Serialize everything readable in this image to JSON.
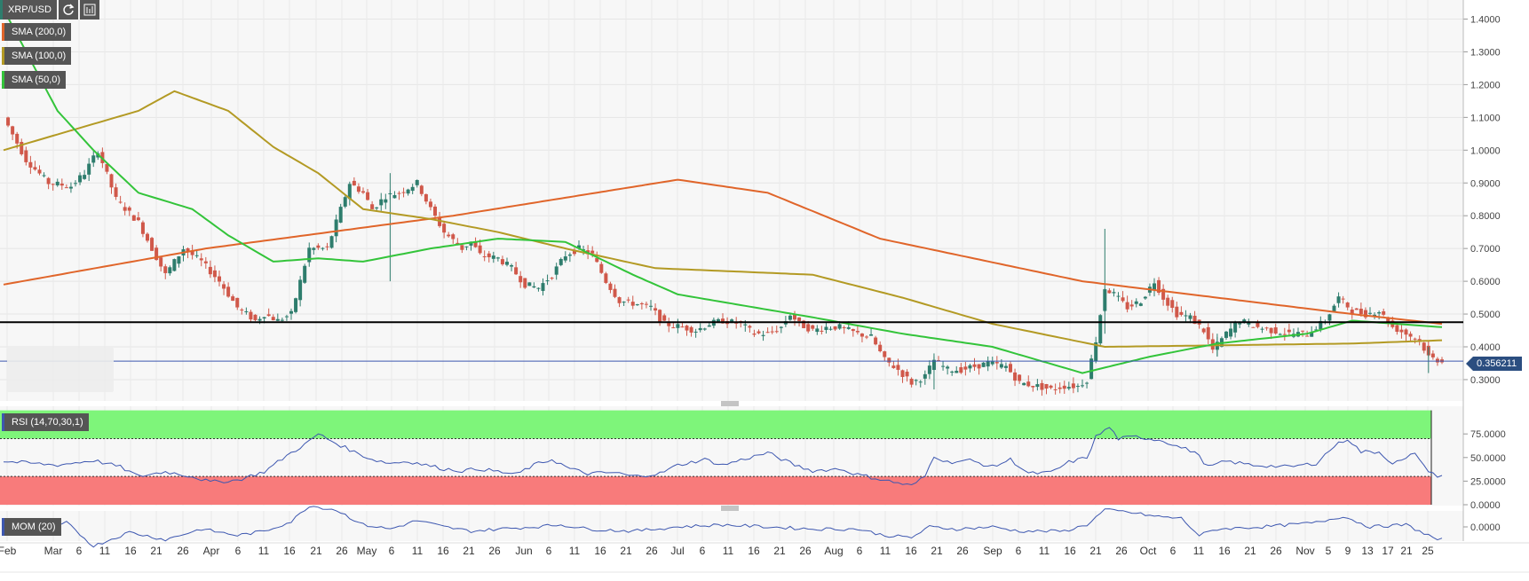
{
  "toolbar": {
    "symbol": "XRP/USD",
    "refresh_icon": "refresh-icon",
    "chart_type_icon": "candlestick-chart-icon"
  },
  "legend": [
    {
      "label": "SMA (200,0)",
      "color": "#e0652a"
    },
    {
      "label": "SMA (100,0)",
      "color": "#b39a24"
    },
    {
      "label": "SMA (50,0)",
      "color": "#33c43a"
    }
  ],
  "price_tag": {
    "value": "0.356211",
    "color": "#2b4e80"
  },
  "colors": {
    "up": "#2e7d6d",
    "down": "#d0584a",
    "rsi_overbought": "#7ef57a",
    "rsi_oversold": "#f87b7b",
    "indicator_line": "#3d57b0",
    "support": "#000000"
  },
  "chart_data": [
    {
      "type": "candlestick",
      "symbol": "XRP/USD",
      "y_ticks": [
        "1.4000",
        "1.3000",
        "1.2000",
        "1.1000",
        "1.0000",
        "0.9000",
        "0.8000",
        "0.7000",
        "0.6000",
        "0.5000",
        "0.4000",
        "0.3000"
      ],
      "ylim": [
        0.25,
        1.43
      ],
      "x_tick_labels": [
        "Feb",
        "Mar",
        "6",
        "11",
        "16",
        "21",
        "26",
        "Apr",
        "6",
        "11",
        "16",
        "21",
        "26",
        "May",
        "6",
        "11",
        "16",
        "21",
        "26",
        "Jun",
        "6",
        "11",
        "16",
        "21",
        "26",
        "Jul",
        "6",
        "11",
        "16",
        "21",
        "26",
        "Aug",
        "6",
        "11",
        "16",
        "21",
        "26",
        "Sep",
        "6",
        "11",
        "16",
        "21",
        "26",
        "Oct",
        "6",
        "11",
        "16",
        "21",
        "26",
        "Nov",
        "5",
        "9",
        "13",
        "17",
        "21",
        "25"
      ],
      "horizontal_support": 0.475,
      "last_price": 0.356211,
      "price_anchors": [
        [
          0,
          1.1
        ],
        [
          5,
          0.97
        ],
        [
          10,
          0.9
        ],
        [
          15,
          0.89
        ],
        [
          18,
          0.93
        ],
        [
          21,
          1.0
        ],
        [
          25,
          0.85
        ],
        [
          30,
          0.78
        ],
        [
          33,
          0.7
        ],
        [
          36,
          0.62
        ],
        [
          40,
          0.7
        ],
        [
          44,
          0.66
        ],
        [
          48,
          0.6
        ],
        [
          52,
          0.52
        ],
        [
          56,
          0.48
        ],
        [
          58,
          0.5
        ],
        [
          61,
          0.48
        ],
        [
          64,
          0.5
        ],
        [
          66,
          0.6
        ],
        [
          68,
          0.7
        ],
        [
          72,
          0.7
        ],
        [
          75,
          0.82
        ],
        [
          77,
          0.9
        ],
        [
          80,
          0.87
        ],
        [
          82,
          0.82
        ],
        [
          85,
          0.86
        ],
        [
          88,
          0.87
        ],
        [
          92,
          0.9
        ],
        [
          95,
          0.82
        ],
        [
          98,
          0.75
        ],
        [
          102,
          0.7
        ],
        [
          104,
          0.72
        ],
        [
          106,
          0.68
        ],
        [
          110,
          0.67
        ],
        [
          113,
          0.64
        ],
        [
          116,
          0.59
        ],
        [
          119,
          0.58
        ],
        [
          122,
          0.62
        ],
        [
          125,
          0.68
        ],
        [
          128,
          0.7
        ],
        [
          131,
          0.68
        ],
        [
          134,
          0.6
        ],
        [
          137,
          0.54
        ],
        [
          141,
          0.53
        ],
        [
          144,
          0.52
        ],
        [
          147,
          0.47
        ],
        [
          151,
          0.46
        ],
        [
          154,
          0.45
        ],
        [
          157,
          0.47
        ],
        [
          160,
          0.48
        ],
        [
          164,
          0.47
        ],
        [
          167,
          0.44
        ],
        [
          170,
          0.44
        ],
        [
          173,
          0.46
        ],
        [
          175,
          0.5
        ],
        [
          177,
          0.47
        ],
        [
          180,
          0.45
        ],
        [
          183,
          0.46
        ],
        [
          186,
          0.46
        ],
        [
          190,
          0.44
        ],
        [
          193,
          0.43
        ],
        [
          196,
          0.36
        ],
        [
          199,
          0.33
        ],
        [
          202,
          0.29
        ],
        [
          205,
          0.31
        ],
        [
          207,
          0.36
        ],
        [
          210,
          0.33
        ],
        [
          213,
          0.33
        ],
        [
          216,
          0.34
        ],
        [
          219,
          0.35
        ],
        [
          223,
          0.34
        ],
        [
          226,
          0.29
        ],
        [
          230,
          0.28
        ],
        [
          233,
          0.27
        ],
        [
          236,
          0.28
        ],
        [
          239,
          0.28
        ],
        [
          241,
          0.3
        ],
        [
          243,
          0.42
        ],
        [
          245,
          0.58
        ],
        [
          247,
          0.56
        ],
        [
          250,
          0.52
        ],
        [
          253,
          0.54
        ],
        [
          256,
          0.6
        ],
        [
          258,
          0.55
        ],
        [
          261,
          0.5
        ],
        [
          264,
          0.49
        ],
        [
          267,
          0.45
        ],
        [
          269,
          0.39
        ],
        [
          272,
          0.44
        ],
        [
          275,
          0.48
        ],
        [
          279,
          0.46
        ],
        [
          282,
          0.45
        ],
        [
          286,
          0.44
        ],
        [
          290,
          0.44
        ],
        [
          294,
          0.48
        ],
        [
          297,
          0.55
        ],
        [
          300,
          0.51
        ],
        [
          303,
          0.5
        ],
        [
          306,
          0.51
        ],
        [
          309,
          0.46
        ],
        [
          312,
          0.44
        ],
        [
          315,
          0.42
        ],
        [
          317,
          0.37
        ],
        [
          319,
          0.36
        ]
      ],
      "sma_200_anchors": [
        [
          0,
          0.59
        ],
        [
          45,
          0.7
        ],
        [
          100,
          0.8
        ],
        [
          150,
          0.91
        ],
        [
          170,
          0.87
        ],
        [
          195,
          0.73
        ],
        [
          240,
          0.6
        ],
        [
          300,
          0.5
        ],
        [
          320,
          0.47
        ]
      ],
      "sma_100_anchors": [
        [
          0,
          1.0
        ],
        [
          30,
          1.12
        ],
        [
          38,
          1.18
        ],
        [
          50,
          1.12
        ],
        [
          60,
          1.01
        ],
        [
          70,
          0.93
        ],
        [
          80,
          0.82
        ],
        [
          95,
          0.79
        ],
        [
          110,
          0.75
        ],
        [
          125,
          0.7
        ],
        [
          145,
          0.64
        ],
        [
          180,
          0.62
        ],
        [
          200,
          0.55
        ],
        [
          220,
          0.47
        ],
        [
          245,
          0.4
        ],
        [
          300,
          0.41
        ],
        [
          320,
          0.42
        ]
      ],
      "sma_50_anchors": [
        [
          0,
          1.43
        ],
        [
          12,
          1.12
        ],
        [
          20,
          1.0
        ],
        [
          30,
          0.87
        ],
        [
          42,
          0.82
        ],
        [
          50,
          0.74
        ],
        [
          60,
          0.66
        ],
        [
          70,
          0.67
        ],
        [
          80,
          0.66
        ],
        [
          95,
          0.7
        ],
        [
          110,
          0.73
        ],
        [
          125,
          0.72
        ],
        [
          140,
          0.62
        ],
        [
          150,
          0.56
        ],
        [
          180,
          0.49
        ],
        [
          200,
          0.44
        ],
        [
          220,
          0.4
        ],
        [
          240,
          0.32
        ],
        [
          255,
          0.37
        ],
        [
          270,
          0.41
        ],
        [
          290,
          0.44
        ],
        [
          300,
          0.48
        ],
        [
          320,
          0.46
        ]
      ]
    },
    {
      "type": "line",
      "name": "RSI (14,70,30,1)",
      "y_ticks": [
        "75.0000",
        "50.0000",
        "25.0000",
        "0.0000"
      ],
      "ylim": [
        0,
        100
      ],
      "overbought": 70,
      "oversold": 30,
      "anchors": [
        [
          0,
          46
        ],
        [
          12,
          42
        ],
        [
          20,
          47
        ],
        [
          26,
          40
        ],
        [
          30,
          30
        ],
        [
          36,
          35
        ],
        [
          42,
          30
        ],
        [
          46,
          24
        ],
        [
          52,
          26
        ],
        [
          58,
          35
        ],
        [
          63,
          52
        ],
        [
          68,
          67
        ],
        [
          70,
          75
        ],
        [
          74,
          65
        ],
        [
          78,
          56
        ],
        [
          82,
          48
        ],
        [
          86,
          44
        ],
        [
          90,
          46
        ],
        [
          94,
          42
        ],
        [
          98,
          38
        ],
        [
          102,
          36
        ],
        [
          106,
          38
        ],
        [
          110,
          35
        ],
        [
          114,
          32
        ],
        [
          118,
          42
        ],
        [
          122,
          48
        ],
        [
          126,
          38
        ],
        [
          130,
          33
        ],
        [
          136,
          34
        ],
        [
          140,
          30
        ],
        [
          146,
          33
        ],
        [
          150,
          42
        ],
        [
          156,
          48
        ],
        [
          160,
          42
        ],
        [
          166,
          50
        ],
        [
          170,
          55
        ],
        [
          176,
          42
        ],
        [
          180,
          36
        ],
        [
          186,
          38
        ],
        [
          190,
          32
        ],
        [
          194,
          28
        ],
        [
          198,
          24
        ],
        [
          202,
          20
        ],
        [
          205,
          30
        ],
        [
          207,
          52
        ],
        [
          210,
          45
        ],
        [
          215,
          47
        ],
        [
          220,
          40
        ],
        [
          224,
          48
        ],
        [
          228,
          33
        ],
        [
          233,
          34
        ],
        [
          237,
          45
        ],
        [
          241,
          50
        ],
        [
          243,
          72
        ],
        [
          246,
          82
        ],
        [
          248,
          70
        ],
        [
          252,
          72
        ],
        [
          258,
          68
        ],
        [
          261,
          62
        ],
        [
          265,
          56
        ],
        [
          268,
          40
        ],
        [
          272,
          46
        ],
        [
          278,
          42
        ],
        [
          286,
          40
        ],
        [
          292,
          44
        ],
        [
          296,
          62
        ],
        [
          299,
          70
        ],
        [
          302,
          56
        ],
        [
          306,
          56
        ],
        [
          309,
          44
        ],
        [
          312,
          48
        ],
        [
          314,
          56
        ],
        [
          316,
          40
        ],
        [
          319,
          30
        ]
      ]
    },
    {
      "type": "line",
      "name": "MOM (20)",
      "y_ticks": [
        "0.0000"
      ],
      "ylim": [
        -0.3,
        0.3
      ],
      "anchors": [
        [
          0,
          0.0
        ],
        [
          8,
          -0.05
        ],
        [
          14,
          0.04
        ],
        [
          20,
          -0.18
        ],
        [
          28,
          -0.05
        ],
        [
          36,
          -0.12
        ],
        [
          44,
          -0.02
        ],
        [
          52,
          -0.08
        ],
        [
          58,
          -0.04
        ],
        [
          64,
          0.05
        ],
        [
          68,
          0.2
        ],
        [
          74,
          0.16
        ],
        [
          80,
          0.02
        ],
        [
          86,
          -0.02
        ],
        [
          92,
          0.06
        ],
        [
          98,
          0.0
        ],
        [
          104,
          -0.04
        ],
        [
          110,
          -0.02
        ],
        [
          118,
          0.0
        ],
        [
          124,
          0.02
        ],
        [
          130,
          -0.02
        ],
        [
          140,
          -0.04
        ],
        [
          150,
          0.0
        ],
        [
          160,
          0.02
        ],
        [
          170,
          0.0
        ],
        [
          180,
          -0.02
        ],
        [
          190,
          -0.02
        ],
        [
          196,
          -0.08
        ],
        [
          202,
          -0.1
        ],
        [
          206,
          0.0
        ],
        [
          212,
          -0.02
        ],
        [
          220,
          0.0
        ],
        [
          226,
          -0.04
        ],
        [
          236,
          -0.04
        ],
        [
          241,
          0.02
        ],
        [
          245,
          0.16
        ],
        [
          250,
          0.14
        ],
        [
          256,
          0.1
        ],
        [
          262,
          0.08
        ],
        [
          266,
          -0.08
        ],
        [
          270,
          -0.02
        ],
        [
          280,
          0.0
        ],
        [
          292,
          0.04
        ],
        [
          298,
          0.1
        ],
        [
          304,
          0.0
        ],
        [
          312,
          0.02
        ],
        [
          319,
          -0.12
        ]
      ]
    }
  ]
}
